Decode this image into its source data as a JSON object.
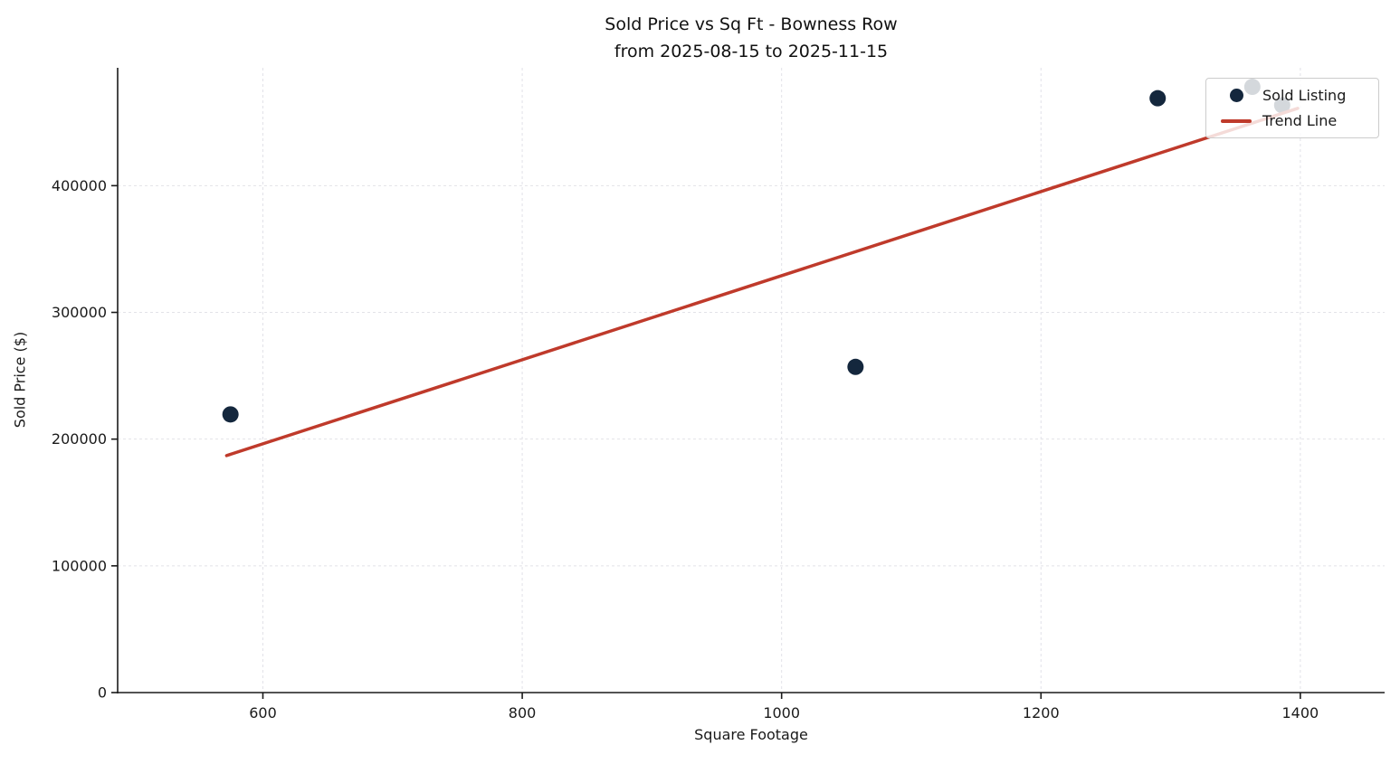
{
  "figure": {
    "background": "#ffffff"
  },
  "chart_data": {
    "type": "scatter",
    "title": "Sold Price vs Sq Ft - Bowness Row\nfrom 2025-08-15 to 2025-11-15",
    "title_line1": "Sold Price vs Sq Ft - Bowness Row",
    "title_line2": "from 2025-08-15 to 2025-11-15",
    "xlabel": "Square Footage",
    "ylabel": "Sold Price ($)",
    "xlim": [
      488,
      1465
    ],
    "ylim": [
      0,
      493000
    ],
    "xticks": [
      600,
      800,
      1000,
      1200,
      1400
    ],
    "yticks": [
      0,
      100000,
      200000,
      300000,
      400000
    ],
    "grid": true,
    "grid_style": "dashed",
    "legend_position": "upper right",
    "series": [
      {
        "name": "Sold Listing",
        "type": "scatter",
        "color": "#14273d",
        "marker_size": 9,
        "points": [
          {
            "sqft": 575,
            "sold_price": 219500
          },
          {
            "sqft": 1057,
            "sold_price": 257000
          },
          {
            "sqft": 1290,
            "sold_price": 469000
          },
          {
            "sqft": 1363,
            "sold_price": 478000
          },
          {
            "sqft": 1386,
            "sold_price": 463500
          }
        ]
      },
      {
        "name": "Trend Line",
        "type": "line",
        "color": "#bf3a2b",
        "width": 3.5,
        "x": [
          572,
          1398
        ],
        "y": [
          187000,
          461000
        ]
      }
    ]
  },
  "colors": {
    "point": "#14273d",
    "trend": "#bf3a2b",
    "grid": "#e2e2e8",
    "axis": "#1a1a1a",
    "text": "#1a1a1a",
    "legend_border": "#cccccc"
  }
}
